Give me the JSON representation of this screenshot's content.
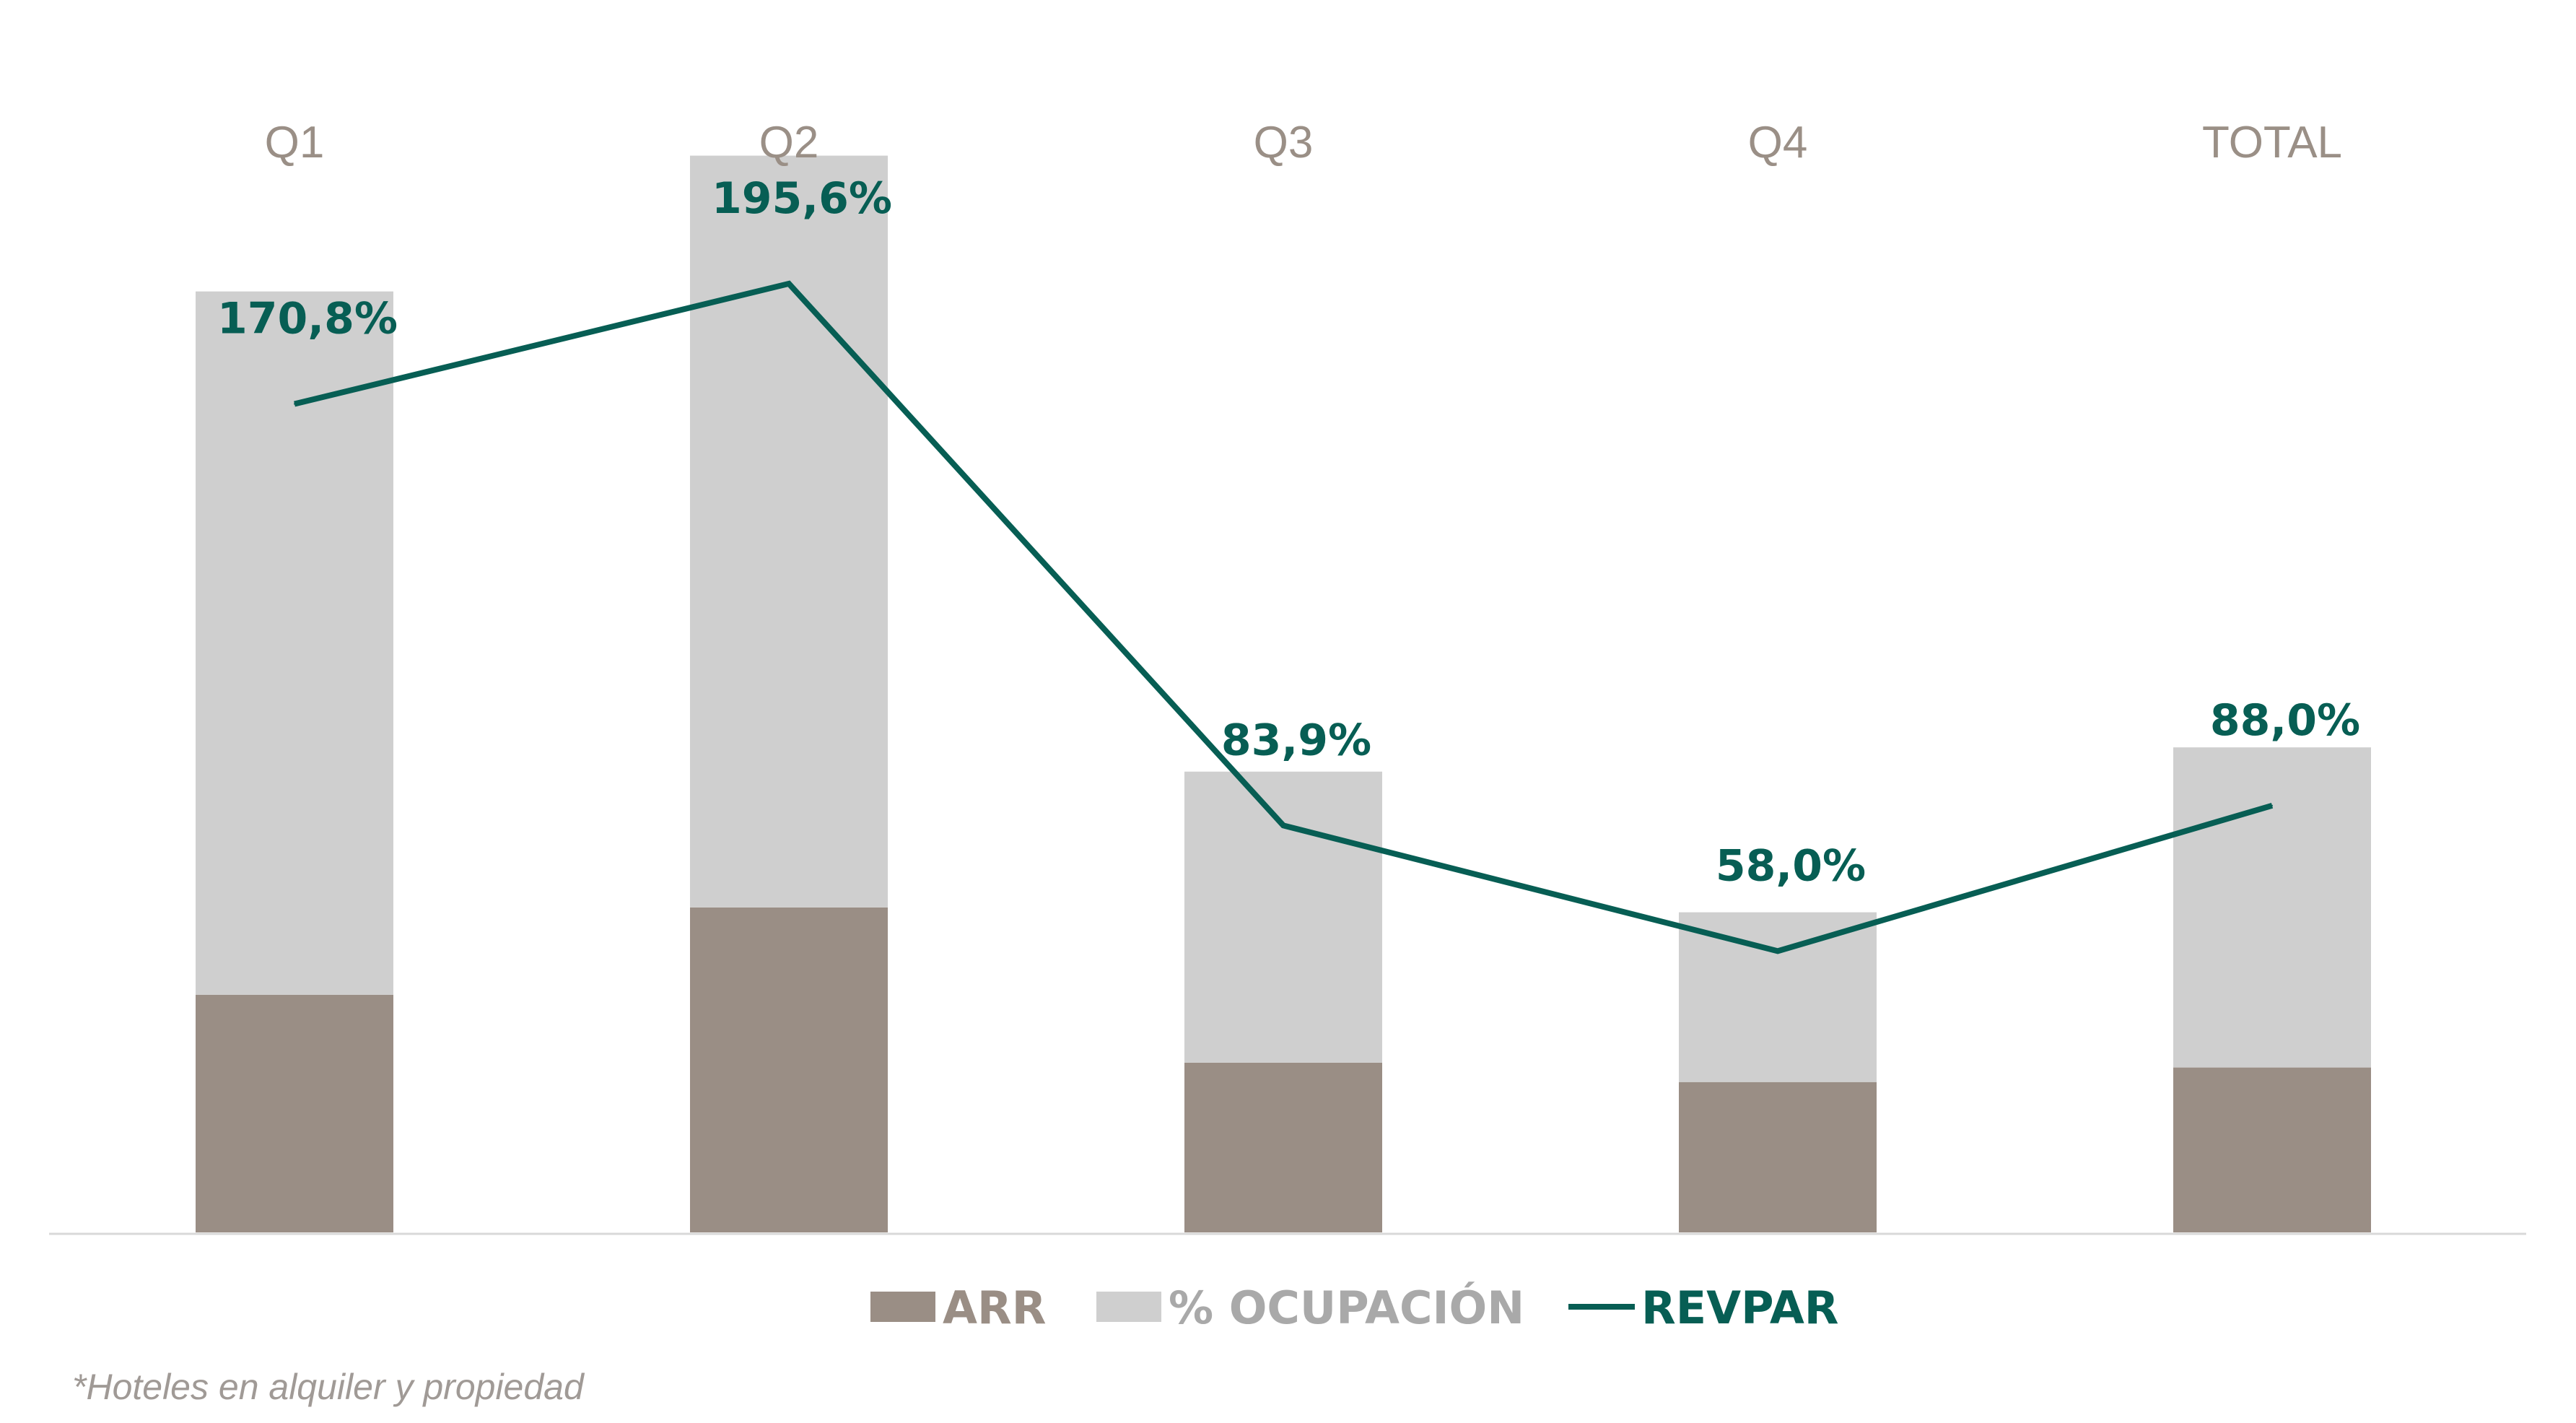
{
  "colors": {
    "arr": "#9a8e85",
    "ocupacion": "#cfcfcf",
    "revpar": "#075e54",
    "category_text": "#9a8f86",
    "axis": "#d9d9d9",
    "footnote": "#a09a96"
  },
  "chart_data": {
    "type": "bar",
    "stacked": true,
    "categories": [
      "Q1",
      "Q2",
      "Q3",
      "Q4",
      "TOTAL"
    ],
    "series": [
      {
        "name": "ARR",
        "kind": "bar",
        "values": [
          49,
          67,
          35,
          31,
          34
        ]
      },
      {
        "name": "% OCUPACIÓN",
        "kind": "bar",
        "values": [
          145,
          155,
          60,
          35,
          66
        ]
      },
      {
        "name": "REVPAR",
        "kind": "line",
        "values": [
          170.8,
          195.6,
          83.9,
          58.0,
          88.0
        ],
        "labels": [
          "170,8%",
          "195,6%",
          "83,9%",
          "58,0%",
          "88,0%"
        ]
      }
    ],
    "ylim": [
      0,
      220
    ],
    "grid": false,
    "legend": "bottom"
  },
  "legend": {
    "arr": "ARR",
    "ocupacion": "% OCUPACIÓN",
    "revpar": "REVPAR"
  },
  "footnote": "*Hoteles en alquiler y propiedad"
}
